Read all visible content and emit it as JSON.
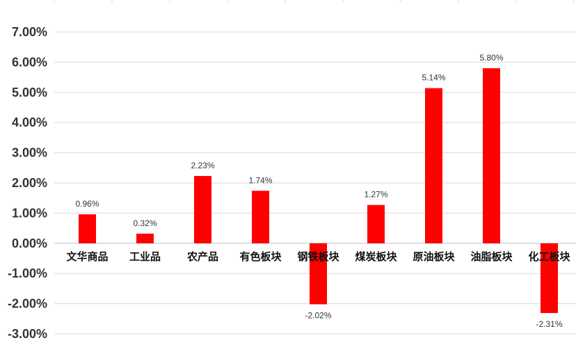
{
  "chart_data": {
    "type": "bar",
    "categories": [
      "文华商品",
      "工业品",
      "农产品",
      "有色板块",
      "钢铁板块",
      "煤炭板块",
      "原油板块",
      "油脂板块",
      "化工板块"
    ],
    "values": [
      0.96,
      0.32,
      2.23,
      1.74,
      -2.02,
      1.27,
      5.14,
      5.8,
      -2.31
    ],
    "data_labels": [
      "0.96%",
      "0.32%",
      "2.23%",
      "1.74%",
      "-2.02%",
      "1.27%",
      "5.14%",
      "5.80%",
      "-2.31%"
    ],
    "ylim": [
      -3,
      7
    ],
    "yticks": [
      7,
      6,
      5,
      4,
      3,
      2,
      1,
      0,
      -1,
      -2,
      -3
    ],
    "ytick_labels": [
      "7.00%",
      "6.00%",
      "5.00%",
      "4.00%",
      "3.00%",
      "2.00%",
      "1.00%",
      "0.00%",
      "-1.00%",
      "-2.00%",
      "-3.00%"
    ],
    "grid": true,
    "bar_color": "#ff0000",
    "title": "",
    "xlabel": "",
    "ylabel": ""
  }
}
